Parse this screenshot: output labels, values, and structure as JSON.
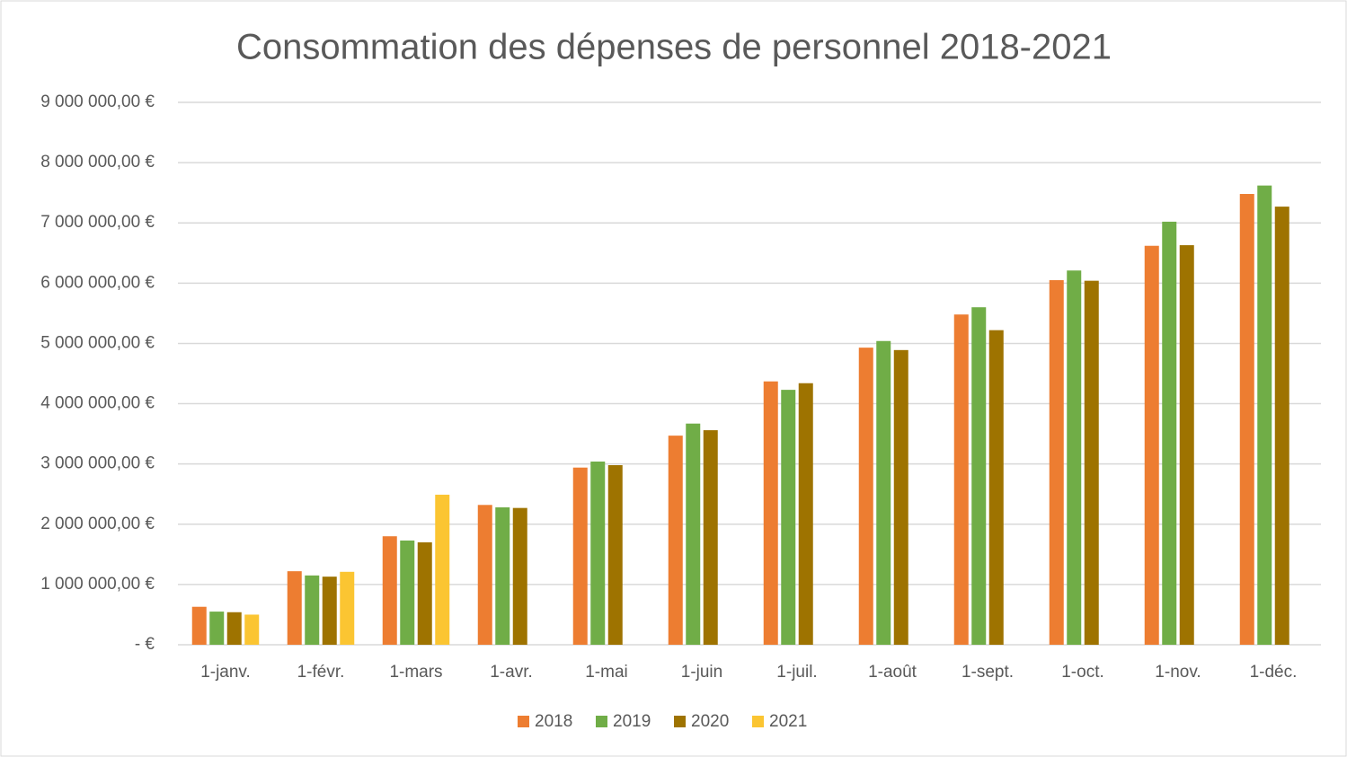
{
  "chart_data": {
    "type": "bar",
    "title": "Consommation des dépenses de personnel 2018-2021",
    "categories": [
      "1-janv.",
      "1-févr.",
      "1-mars",
      "1-avr.",
      "1-mai",
      "1-juin",
      "1-juil.",
      "1-août",
      "1-sept.",
      "1-oct.",
      "1-nov.",
      "1-déc."
    ],
    "series": [
      {
        "name": "2018",
        "color": "#ed7d31",
        "values": [
          630000,
          1220000,
          1800000,
          2320000,
          2940000,
          3470000,
          4370000,
          4930000,
          5480000,
          6050000,
          6620000,
          7480000
        ]
      },
      {
        "name": "2019",
        "color": "#70ad47",
        "values": [
          550000,
          1150000,
          1730000,
          2280000,
          3040000,
          3670000,
          4230000,
          5040000,
          5600000,
          6210000,
          7020000,
          7620000
        ]
      },
      {
        "name": "2020",
        "color": "#9e7300",
        "values": [
          540000,
          1130000,
          1700000,
          2270000,
          2980000,
          3560000,
          4340000,
          4890000,
          5220000,
          6040000,
          6630000,
          7270000
        ]
      },
      {
        "name": "2021",
        "color": "#fbc532",
        "values": [
          500000,
          1210000,
          2490000,
          null,
          null,
          null,
          null,
          null,
          null,
          null,
          null,
          null
        ]
      }
    ],
    "ylim": [
      0,
      9000000
    ],
    "yticks": [
      {
        "value": 0,
        "label": "-   €"
      },
      {
        "value": 1000000,
        "label": "1 000 000,00 €"
      },
      {
        "value": 2000000,
        "label": "2 000 000,00 €"
      },
      {
        "value": 3000000,
        "label": "3 000 000,00 €"
      },
      {
        "value": 4000000,
        "label": "4 000 000,00 €"
      },
      {
        "value": 5000000,
        "label": "5 000 000,00 €"
      },
      {
        "value": 6000000,
        "label": "6 000 000,00 €"
      },
      {
        "value": 7000000,
        "label": "7 000 000,00 €"
      },
      {
        "value": 8000000,
        "label": "8 000 000,00 €"
      },
      {
        "value": 9000000,
        "label": "9 000 000,00 €"
      }
    ],
    "grid": true,
    "legend": "bottom"
  }
}
